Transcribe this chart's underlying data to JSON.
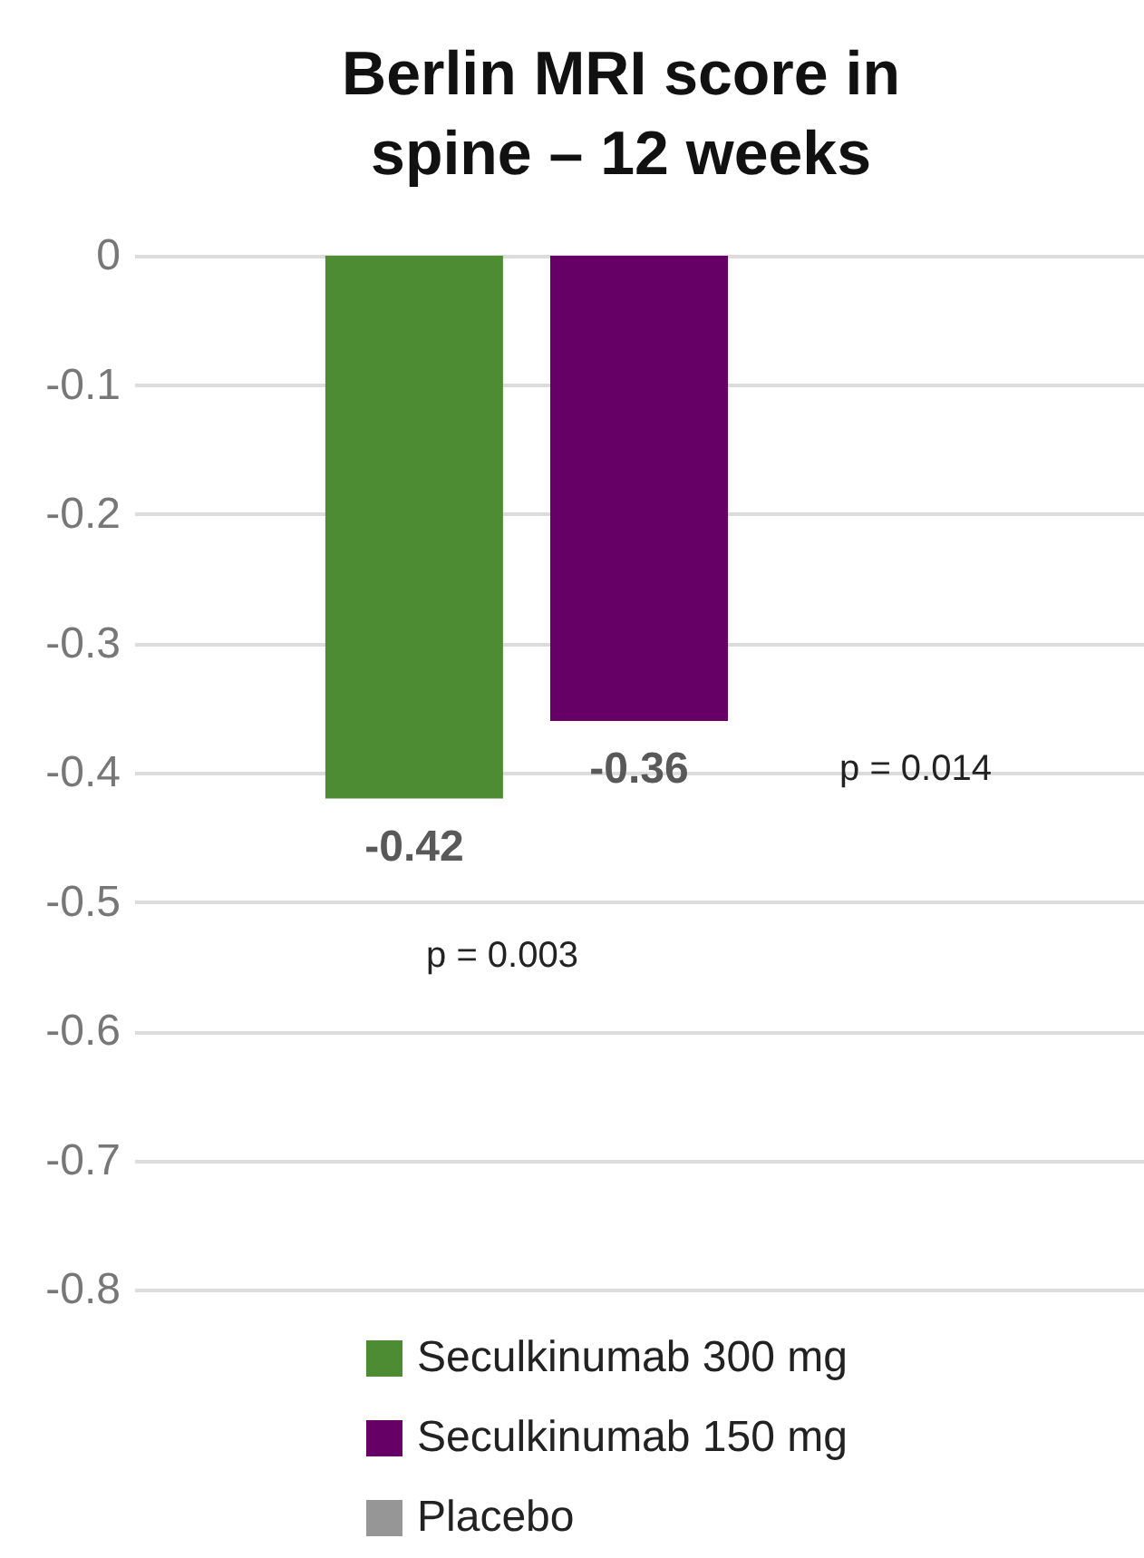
{
  "chart_data": {
    "type": "bar",
    "title": [
      "Berlin MRI score in",
      "spine – 12 weeks"
    ],
    "categories": [
      null
    ],
    "series": [
      {
        "name": "Seculkinumab 300 mg",
        "color": "#4d8c32",
        "values": [
          -0.42
        ],
        "value_labels": [
          "-0.42"
        ]
      },
      {
        "name": "Seculkinumab 150 mg",
        "color": "#660066",
        "values": [
          -0.36
        ],
        "value_labels": [
          "-0.36"
        ]
      },
      {
        "name": "Placebo",
        "color": "#969696",
        "values": [
          0
        ],
        "value_labels": [
          null
        ]
      }
    ],
    "ylim": [
      -0.8,
      0
    ],
    "yticks": [
      0,
      -0.1,
      -0.2,
      -0.3,
      -0.4,
      -0.5,
      -0.6,
      -0.7,
      -0.8
    ],
    "grid": "y",
    "legend": "bottom",
    "annotations": [
      "p = 0.003",
      "p = 0.014"
    ]
  }
}
